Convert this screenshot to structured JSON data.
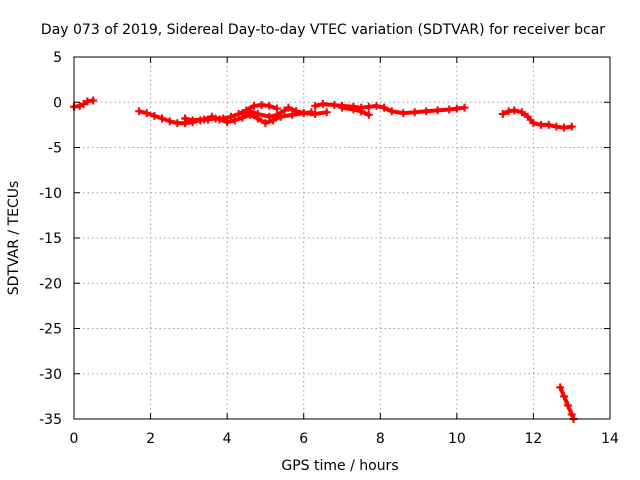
{
  "chart_data": {
    "type": "line",
    "title": "Day 073 of 2019, Sidereal Day-to-day VTEC variation (SDTVAR) for receiver bcar",
    "xlabel": "GPS time / hours",
    "ylabel": "SDTVAR / TECUs",
    "xlim": [
      0,
      14
    ],
    "ylim": [
      -35,
      5
    ],
    "xticks": [
      0,
      2,
      4,
      6,
      8,
      10,
      12,
      14
    ],
    "yticks": [
      5,
      0,
      -5,
      -10,
      -15,
      -20,
      -25,
      -30,
      -35
    ],
    "grid": true,
    "series": [
      {
        "name": "SDTVAR",
        "color": "#ff0000",
        "segments": [
          [
            [
              0.0,
              -0.5
            ],
            [
              0.15,
              -0.4
            ],
            [
              0.25,
              -0.2
            ],
            [
              0.35,
              0.1
            ],
            [
              0.5,
              0.2
            ]
          ],
          [
            [
              1.7,
              -1.0
            ],
            [
              1.9,
              -1.2
            ],
            [
              2.1,
              -1.5
            ],
            [
              2.3,
              -1.8
            ],
            [
              2.5,
              -2.1
            ],
            [
              2.7,
              -2.3
            ],
            [
              2.9,
              -2.3
            ],
            [
              3.1,
              -2.2
            ],
            [
              3.3,
              -2.0
            ],
            [
              3.5,
              -1.9
            ],
            [
              3.7,
              -1.8
            ],
            [
              3.9,
              -1.8
            ],
            [
              4.1,
              -1.6
            ],
            [
              4.3,
              -1.3
            ],
            [
              4.5,
              -0.9
            ],
            [
              4.7,
              -0.4
            ],
            [
              4.9,
              -0.3
            ],
            [
              5.1,
              -0.4
            ],
            [
              5.3,
              -0.7
            ]
          ],
          [
            [
              2.9,
              -1.8
            ],
            [
              3.1,
              -2.0
            ],
            [
              3.4,
              -1.9
            ],
            [
              3.6,
              -1.6
            ],
            [
              3.8,
              -1.9
            ],
            [
              4.0,
              -2.2
            ],
            [
              4.2,
              -2.0
            ],
            [
              4.4,
              -1.7
            ],
            [
              4.6,
              -1.4
            ],
            [
              4.8,
              -1.8
            ],
            [
              5.0,
              -2.3
            ],
            [
              5.2,
              -2.0
            ],
            [
              5.4,
              -1.6
            ],
            [
              5.7,
              -1.4
            ],
            [
              6.0,
              -1.2
            ],
            [
              6.2,
              -1.1
            ]
          ],
          [
            [
              4.4,
              -1.2
            ],
            [
              4.6,
              -1.0
            ],
            [
              4.8,
              -1.3
            ],
            [
              5.1,
              -1.6
            ],
            [
              5.3,
              -1.4
            ],
            [
              5.5,
              -0.9
            ],
            [
              5.6,
              -0.6
            ],
            [
              5.8,
              -1.0
            ],
            [
              6.0,
              -1.2
            ],
            [
              6.3,
              -1.3
            ],
            [
              6.6,
              -1.1
            ]
          ],
          [
            [
              6.3,
              -0.4
            ],
            [
              6.5,
              -0.2
            ],
            [
              6.8,
              -0.3
            ],
            [
              7.0,
              -0.4
            ],
            [
              7.3,
              -0.5
            ],
            [
              7.5,
              -0.6
            ],
            [
              7.7,
              -0.5
            ],
            [
              7.9,
              -0.4
            ],
            [
              8.1,
              -0.6
            ],
            [
              8.3,
              -1.0
            ],
            [
              8.6,
              -1.2
            ],
            [
              8.9,
              -1.1
            ],
            [
              9.2,
              -1.0
            ],
            [
              9.5,
              -0.9
            ],
            [
              9.8,
              -0.8
            ],
            [
              10.0,
              -0.7
            ],
            [
              10.2,
              -0.6
            ]
          ],
          [
            [
              7.0,
              -0.6
            ],
            [
              7.3,
              -0.8
            ],
            [
              7.5,
              -1.0
            ],
            [
              7.7,
              -1.4
            ]
          ],
          [
            [
              11.2,
              -1.3
            ],
            [
              11.35,
              -1.0
            ],
            [
              11.5,
              -0.9
            ],
            [
              11.7,
              -1.1
            ],
            [
              11.85,
              -1.6
            ],
            [
              12.0,
              -2.3
            ],
            [
              12.2,
              -2.5
            ],
            [
              12.4,
              -2.5
            ],
            [
              12.6,
              -2.7
            ],
            [
              12.8,
              -2.8
            ],
            [
              13.0,
              -2.7
            ]
          ],
          [
            [
              12.7,
              -31.5
            ],
            [
              12.8,
              -32.5
            ],
            [
              12.9,
              -33.5
            ],
            [
              13.0,
              -34.5
            ],
            [
              13.05,
              -35.0
            ]
          ]
        ]
      }
    ]
  }
}
